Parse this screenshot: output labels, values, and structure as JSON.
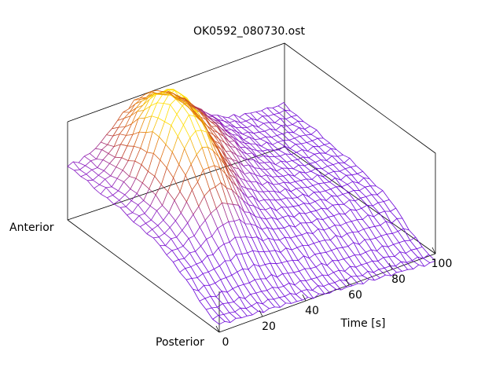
{
  "chart_data": {
    "type": "surface",
    "title": "OK0592_080730.ost",
    "xlabel": "Time [s]",
    "ylabel_front": "Posterior",
    "ylabel_back": "Anterior",
    "xlim": [
      0,
      100
    ],
    "x_ticks": [
      "0",
      "20",
      "40",
      "60",
      "80",
      "100"
    ],
    "grid": false,
    "colormap": [
      "#6a00d8",
      "#8a1ac0",
      "#c0402a",
      "#e07010",
      "#ffdd00"
    ],
    "surface_description_values": {
      "time_points": 40,
      "spatial_points": 24,
      "peak_time_s": 26,
      "secondary_ridge_time_s": 42
    }
  }
}
